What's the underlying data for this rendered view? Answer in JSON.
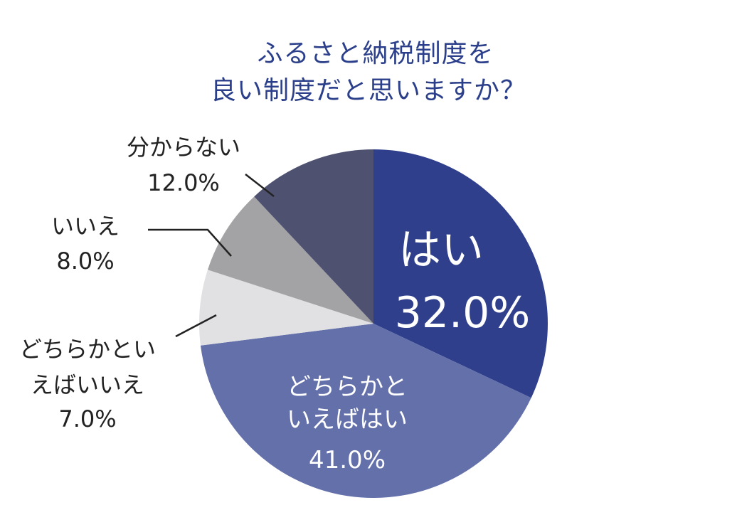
{
  "title": [
    "ふるさと納税制度を",
    "良い制度だと思いますか？"
  ],
  "chart_data": {
    "type": "pie",
    "title": "ふるさと納税制度を良い制度だと思いますか？",
    "slices": [
      {
        "label": "はい",
        "value": 32.0,
        "value_label": "32.0%",
        "color": "#2f3f8c",
        "label_inside": true
      },
      {
        "label": "どちらかといえばはい",
        "value": 41.0,
        "value_label": "41.0%",
        "color": "#6470aa",
        "label_inside": true
      },
      {
        "label": "どちらかといえばいいえ",
        "value": 7.0,
        "value_label": "7.0%",
        "color": "#e1e1e3",
        "label_inside": false
      },
      {
        "label": "いいえ",
        "value": 8.0,
        "value_label": "8.0%",
        "color": "#a3a3a6",
        "label_inside": false
      },
      {
        "label": "分からない",
        "value": 12.0,
        "value_label": "12.0%",
        "color": "#4e5170",
        "label_inside": false
      }
    ]
  }
}
